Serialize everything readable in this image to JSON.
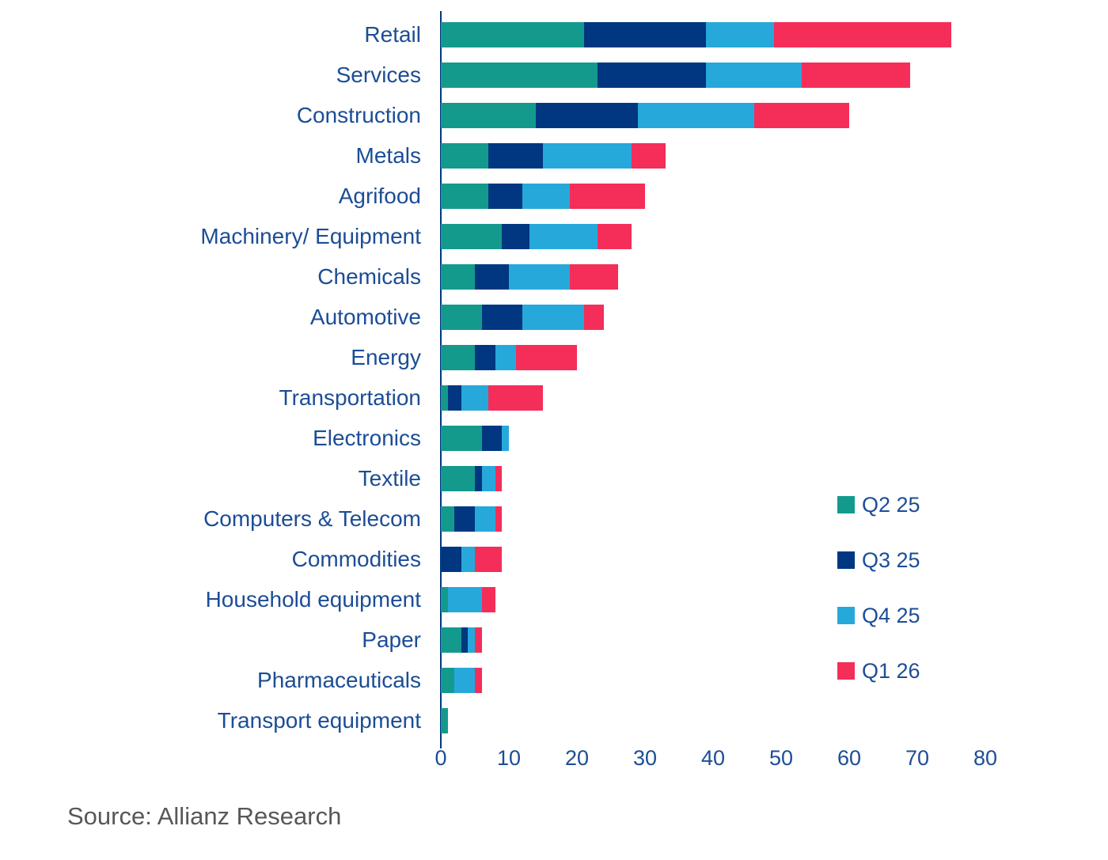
{
  "source_note": "Source: Allianz Research",
  "colors": {
    "q2_25": "#149a8d",
    "q3_25": "#003780",
    "q4_25": "#27a8db",
    "q1_26": "#f42e59",
    "axis": "#003780",
    "label_text": "#1c4d96",
    "source_text": "#57575a",
    "background": "#ffffff"
  },
  "chart_data": {
    "type": "bar",
    "orientation": "horizontal",
    "stacked": true,
    "title": "",
    "xlabel": "",
    "ylabel": "",
    "grid": false,
    "legend_position": "right-middle",
    "categories": [
      "Retail",
      "Services",
      "Construction",
      "Metals",
      "Agrifood",
      "Machinery/ Equipment",
      "Chemicals",
      "Automotive",
      "Energy",
      "Transportation",
      "Electronics",
      "Textile",
      "Computers & Telecom",
      "Commodities",
      "Household equipment",
      "Paper",
      "Pharmaceuticals",
      "Transport equipment"
    ],
    "series": [
      {
        "name": "Q2 25",
        "color_key": "q2_25",
        "values": [
          21,
          23,
          14,
          7,
          7,
          9,
          5,
          6,
          5,
          1,
          6,
          5,
          2,
          0,
          1,
          3,
          2,
          1
        ]
      },
      {
        "name": "Q3 25",
        "color_key": "q3_25",
        "values": [
          18,
          16,
          15,
          8,
          5,
          4,
          5,
          6,
          3,
          2,
          3,
          1,
          3,
          3,
          0,
          1,
          0,
          0
        ]
      },
      {
        "name": "Q4 25",
        "color_key": "q4_25",
        "values": [
          10,
          14,
          17,
          13,
          7,
          10,
          9,
          9,
          3,
          4,
          1,
          2,
          3,
          2,
          5,
          1,
          3,
          0
        ]
      },
      {
        "name": "Q1 26",
        "color_key": "q1_26",
        "values": [
          26,
          16,
          14,
          5,
          11,
          5,
          7,
          3,
          9,
          8,
          0,
          1,
          1,
          4,
          2,
          1,
          1,
          0
        ]
      }
    ],
    "x_axis": {
      "ticks": [
        0,
        10,
        20,
        30,
        40,
        50,
        60,
        70,
        80
      ],
      "min": 0,
      "max": 80
    }
  }
}
